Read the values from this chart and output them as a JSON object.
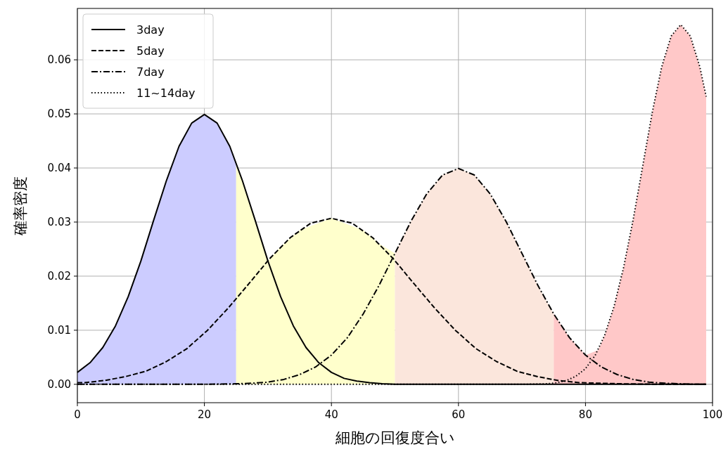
{
  "chart_data": {
    "type": "line",
    "xlabel": "細胞の回復度合い",
    "ylabel": "確率密度",
    "xlim": [
      0,
      100
    ],
    "ylim": [
      -0.0034,
      0.0695
    ],
    "xticks": [
      0,
      20,
      40,
      60,
      80,
      100
    ],
    "yticks": [
      {
        "value": 0,
        "label": "0.00"
      },
      {
        "value": 0.01,
        "label": "0.01"
      },
      {
        "value": 0.02,
        "label": "0.02"
      },
      {
        "value": 0.03,
        "label": "0.03"
      },
      {
        "value": 0.04,
        "label": "0.04"
      },
      {
        "value": 0.05,
        "label": "0.05"
      },
      {
        "value": 0.06,
        "label": "0.06"
      }
    ],
    "grid": true,
    "legend": "top left",
    "series": [
      {
        "type": "area",
        "color": "#ccccff",
        "x": [
          0,
          2,
          4,
          6,
          8,
          10,
          12,
          14,
          16,
          18,
          20,
          22,
          24,
          25
        ],
        "values": [
          0.0022,
          0.004,
          0.0068,
          0.0108,
          0.0162,
          0.0228,
          0.0303,
          0.0376,
          0.044,
          0.0483,
          0.0499,
          0.0483,
          0.044,
          0.041
        ]
      },
      {
        "type": "area",
        "color": "#ffffcc",
        "x": [
          25,
          26,
          28,
          30,
          32,
          35,
          40,
          45,
          47.5,
          50
        ],
        "values": [
          0.041,
          0.0376,
          0.0303,
          0.0228,
          0.0254,
          0.0285,
          0.0307,
          0.0285,
          0.026,
          0.0242
        ]
      },
      {
        "type": "area",
        "color": "#fbe6dc",
        "x": [
          50,
          52.5,
          55,
          57.5,
          60,
          62.5,
          65,
          67.5,
          70,
          72.5,
          75
        ],
        "values": [
          0.0242,
          0.0301,
          0.0352,
          0.0387,
          0.0399,
          0.0387,
          0.0352,
          0.0301,
          0.0242,
          0.0183,
          0.013
        ]
      },
      {
        "type": "area",
        "color": "#ffc8c8",
        "x": [
          75,
          77.5,
          80,
          82,
          83,
          84.5,
          86,
          87.5,
          89,
          90.5,
          92,
          93.5,
          95,
          96.5,
          98,
          99
        ],
        "values": [
          0.013,
          0.0086,
          0.0054,
          0.0063,
          0.009,
          0.0144,
          0.0216,
          0.0304,
          0.0403,
          0.0502,
          0.0587,
          0.0644,
          0.0665,
          0.0644,
          0.0587,
          0.0532
        ]
      },
      {
        "name": "3day",
        "color": "#000000",
        "line_style": "solid",
        "x": [
          0,
          2,
          4,
          6,
          8,
          10,
          12,
          14,
          16,
          18,
          20,
          22,
          24,
          26,
          28,
          30,
          32,
          34,
          36,
          38,
          40,
          42,
          44,
          46,
          48,
          50,
          60,
          80,
          99
        ],
        "values": [
          0.0022,
          0.004,
          0.0068,
          0.0108,
          0.0162,
          0.0228,
          0.0303,
          0.0376,
          0.044,
          0.0483,
          0.0499,
          0.0483,
          0.044,
          0.0376,
          0.0303,
          0.0228,
          0.0162,
          0.0108,
          0.0068,
          0.004,
          0.0022,
          0.0011,
          0.0006,
          0.0003,
          0.0001,
          0,
          0,
          0,
          0
        ]
      },
      {
        "name": "5day",
        "color": "#000000",
        "line_style": "dashed",
        "x": [
          0,
          1,
          4.25,
          7.5,
          10.75,
          14,
          17.25,
          20.5,
          23.75,
          27,
          30.25,
          33.5,
          36.75,
          40,
          43.25,
          46.5,
          49.75,
          53,
          56.25,
          59.5,
          62.75,
          66,
          69.25,
          72.5,
          75.75,
          79,
          82.25,
          85.5,
          92,
          99
        ],
        "values": [
          0.0003,
          0.0003,
          0.0007,
          0.0014,
          0.0024,
          0.0042,
          0.0066,
          0.01,
          0.0141,
          0.0186,
          0.0232,
          0.0271,
          0.0298,
          0.0307,
          0.0298,
          0.0271,
          0.0232,
          0.0186,
          0.0141,
          0.01,
          0.0066,
          0.0042,
          0.0024,
          0.0014,
          0.0007,
          0.0003,
          0.0002,
          0.0001,
          0,
          0
        ]
      },
      {
        "name": "7day",
        "color": "#000000",
        "line_style": "dashdot",
        "x": [
          0,
          20,
          25,
          27.5,
          30,
          32.5,
          35,
          37.5,
          40,
          42.5,
          45,
          47.5,
          50,
          52.5,
          55,
          57.5,
          60,
          62.5,
          65,
          67.5,
          70,
          72.5,
          75,
          77.5,
          80,
          82.5,
          85,
          87.5,
          90,
          92.5,
          95,
          97.5,
          99
        ],
        "values": [
          0,
          0,
          0.0001,
          0.0002,
          0.0004,
          0.0009,
          0.0018,
          0.0032,
          0.0054,
          0.0086,
          0.013,
          0.0183,
          0.0242,
          0.0301,
          0.0352,
          0.0387,
          0.0399,
          0.0387,
          0.0352,
          0.0301,
          0.0242,
          0.0183,
          0.013,
          0.0086,
          0.0054,
          0.0032,
          0.0018,
          0.0009,
          0.0004,
          0.0002,
          0.0001,
          0,
          0
        ]
      },
      {
        "name": "11~14day",
        "color": "#000000",
        "line_style": "dotted",
        "x": [
          0,
          50,
          70,
          74,
          75.5,
          77,
          78.5,
          80,
          81.5,
          83,
          84.5,
          86,
          87.5,
          89,
          90.5,
          92,
          93.5,
          95,
          96.5,
          98,
          99
        ],
        "values": [
          0,
          0,
          0,
          0.0001,
          0.0003,
          0.0007,
          0.0015,
          0.0029,
          0.0053,
          0.009,
          0.0144,
          0.0216,
          0.0304,
          0.0403,
          0.0502,
          0.0587,
          0.0644,
          0.0665,
          0.0644,
          0.0587,
          0.0532
        ]
      }
    ]
  }
}
